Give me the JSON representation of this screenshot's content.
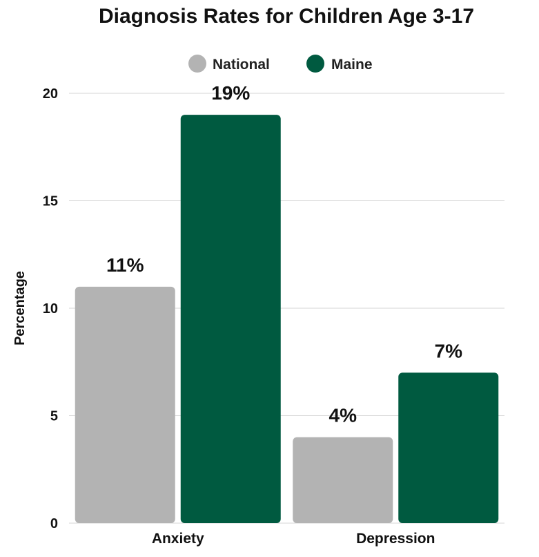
{
  "chart_data": {
    "type": "bar",
    "title": "Diagnosis Rates for Children Age 3-17",
    "xlabel": "",
    "ylabel": "Percentage",
    "categories": [
      "Anxiety",
      "Depression"
    ],
    "series": [
      {
        "name": "National",
        "values": [
          11,
          4
        ],
        "labels": [
          "11%",
          "4%"
        ],
        "color": "#b3b3b3"
      },
      {
        "name": "Maine",
        "values": [
          19,
          7
        ],
        "labels": [
          "19%",
          "7%"
        ],
        "color": "#005a40"
      }
    ],
    "ylim": [
      0,
      20
    ],
    "yticks": [
      0,
      5,
      10,
      15,
      20
    ],
    "grid": true,
    "legend": "top-center"
  }
}
